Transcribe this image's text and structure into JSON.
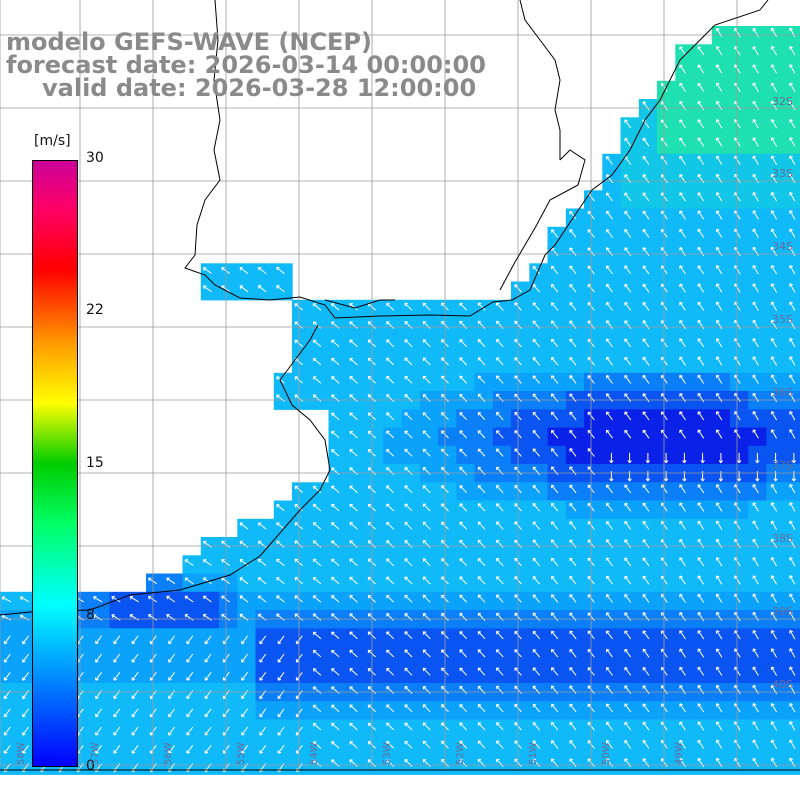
{
  "title": {
    "model": "modelo GEFS-WAVE (NCEP)",
    "forecast": "forecast date: 2026-03-14 00:00:00",
    "valid": "valid date: 2026-03-28 12:00:00"
  },
  "colorbar": {
    "units": "[m/s]",
    "ticks": [
      "30",
      "22",
      "15",
      "8",
      "0"
    ],
    "colors": [
      "#0000ff",
      "#00aaff",
      "#00ffff",
      "#00cc00",
      "#ffff00",
      "#ff0000",
      "#cc0099"
    ]
  },
  "lat_labels": [
    "32S",
    "33S",
    "34S",
    "35S",
    "36S",
    "37S",
    "38S",
    "39S",
    "40S"
  ],
  "lon_labels": [
    "58W",
    "57W",
    "56W",
    "55W",
    "54W",
    "53W",
    "52W",
    "51W",
    "50W",
    "49W"
  ]
}
